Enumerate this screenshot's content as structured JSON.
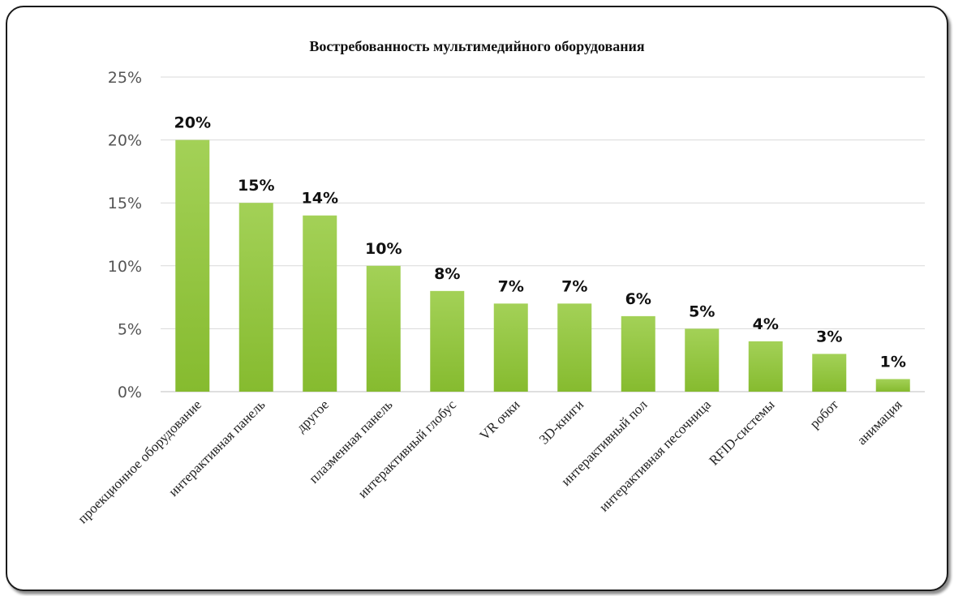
{
  "chart_data": {
    "type": "bar",
    "title": "Востребованность мультимедийного оборудования",
    "categories": [
      "проекционное оборудование",
      "интерактивная панель",
      "другое",
      "плазменная панель",
      "интерактивный глобус",
      "VR очки",
      "3D-книги",
      "интерактивный пол",
      "интерактивная песочница",
      "RFID-системы",
      "робот",
      "анимация"
    ],
    "values": [
      20,
      15,
      14,
      10,
      8,
      7,
      7,
      6,
      5,
      4,
      3,
      1
    ],
    "data_labels": [
      "20%",
      "15%",
      "14%",
      "10%",
      "8%",
      "7%",
      "7%",
      "6%",
      "5%",
      "4%",
      "3%",
      "1%"
    ],
    "yticks": [
      0,
      5,
      10,
      15,
      20,
      25
    ],
    "ytick_labels": [
      "0%",
      "5%",
      "10%",
      "15%",
      "20%",
      "25%"
    ],
    "ylim": [
      0,
      25
    ],
    "grid": true,
    "legend": "none",
    "bar_color": "#8dc63f"
  }
}
